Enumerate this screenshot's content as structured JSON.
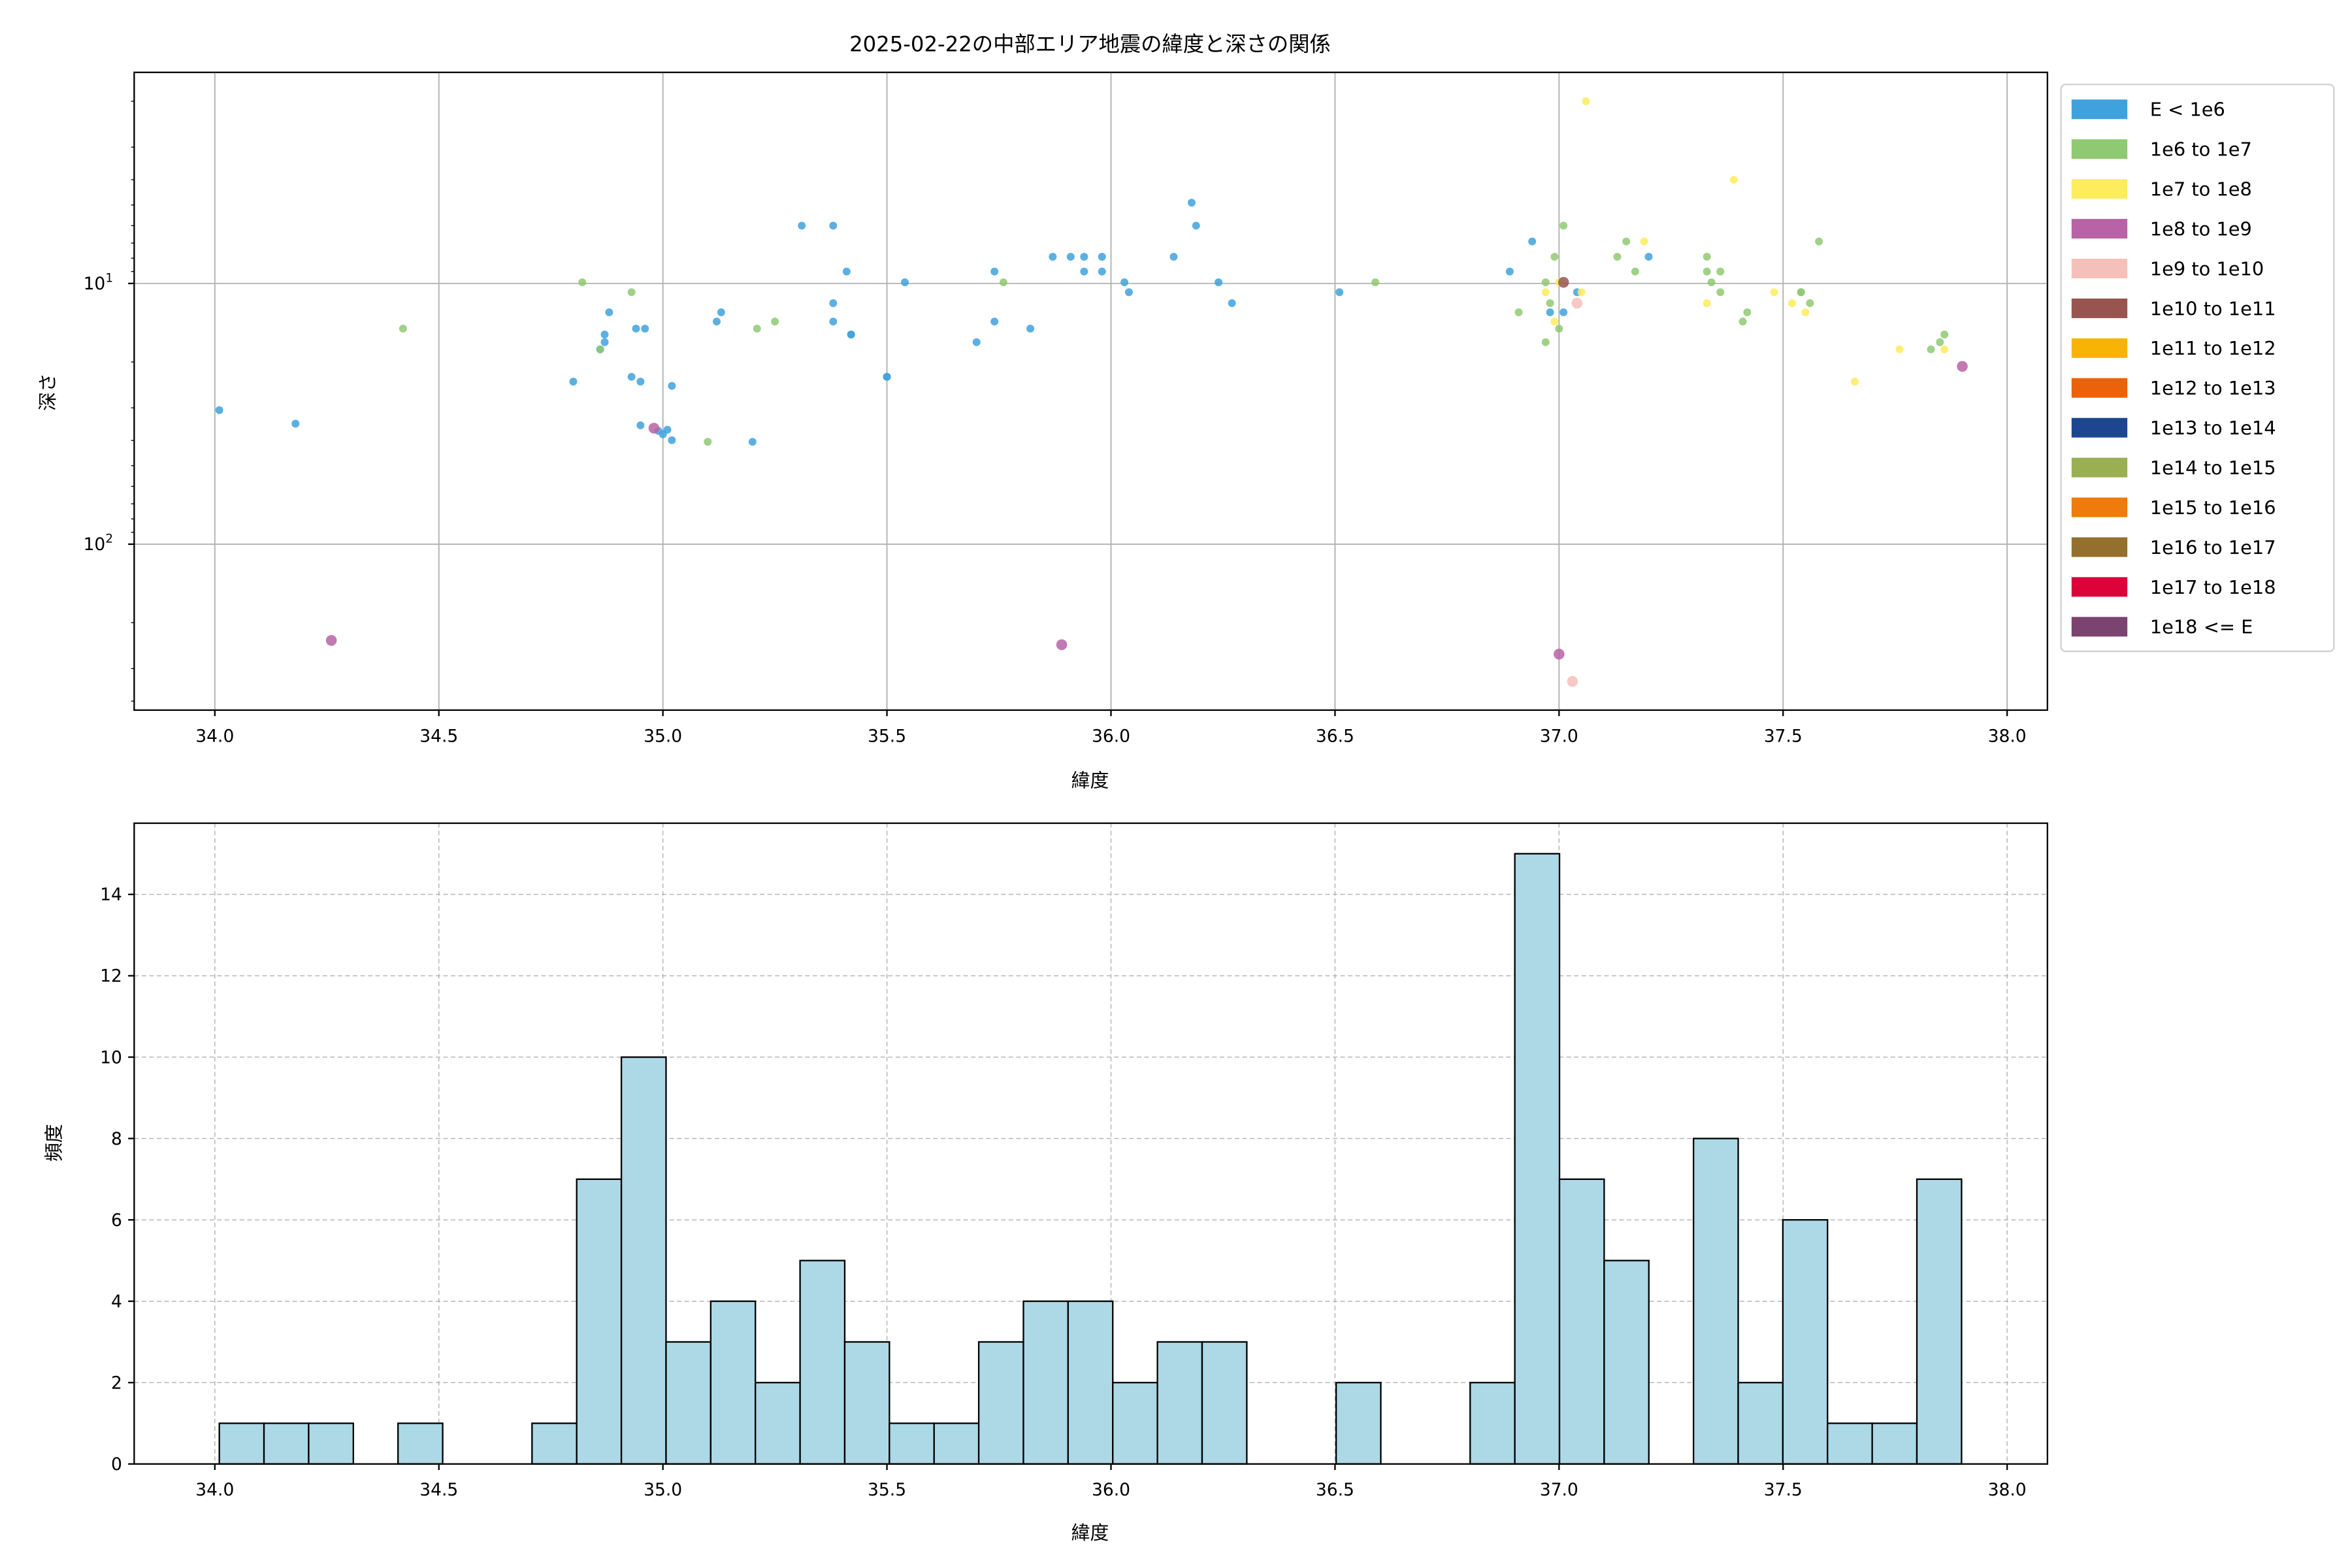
{
  "chart_data": [
    {
      "type": "scatter",
      "title": "2025-02-22の中部エリア地震の緯度と深さの関係",
      "xlabel": "緯度",
      "ylabel": "深さ",
      "xlim": [
        33.82,
        38.09
      ],
      "ylim": [
        433,
        1.55
      ],
      "yscale": "log",
      "y_inverted": true,
      "xticks": [
        "34.0",
        "34.5",
        "35.0",
        "35.5",
        "36.0",
        "36.5",
        "37.0",
        "37.5",
        "38.0"
      ],
      "xtick_values": [
        34.0,
        34.5,
        35.0,
        35.5,
        36.0,
        36.5,
        37.0,
        37.5,
        38.0
      ],
      "yticks": [
        {
          "base": "10",
          "exp": "1",
          "value": 10
        },
        {
          "base": "10",
          "exp": "2",
          "value": 100
        }
      ],
      "grid": true,
      "legend_position": "outside-right",
      "legend": [
        {
          "label": "E < 1e6",
          "color": "#3fa2dc"
        },
        {
          "label": "1e6 to 1e7",
          "color": "#8fc972"
        },
        {
          "label": "1e7 to 1e8",
          "color": "#fdec5c"
        },
        {
          "label": "1e8 to 1e9",
          "color": "#b763a6"
        },
        {
          "label": "1e9 to 1e10",
          "color": "#f6c0ba"
        },
        {
          "label": "1e10 to 1e11",
          "color": "#985550"
        },
        {
          "label": "1e11 to 1e12",
          "color": "#f7b404"
        },
        {
          "label": "1e12 to 1e13",
          "color": "#ec620a"
        },
        {
          "label": "1e13 to 1e14",
          "color": "#1c4690"
        },
        {
          "label": "1e14 to 1e15",
          "color": "#9aae52"
        },
        {
          "label": "1e15 to 1e16",
          "color": "#ee7b0b"
        },
        {
          "label": "1e16 to 1e17",
          "color": "#946f2e"
        },
        {
          "label": "1e17 to 1e18",
          "color": "#dc033a"
        },
        {
          "label": "1e18 <= E",
          "color": "#7b436f"
        }
      ],
      "series": [
        {
          "name": "E < 1e6",
          "points": [
            [
              34.01,
              30.6
            ],
            [
              34.18,
              34.5
            ],
            [
              34.8,
              23.8
            ],
            [
              34.86,
              17.9
            ],
            [
              34.87,
              16.8
            ],
            [
              34.87,
              15.7
            ],
            [
              34.88,
              12.9
            ],
            [
              34.93,
              22.8
            ],
            [
              34.94,
              14.9
            ],
            [
              34.95,
              23.8
            ],
            [
              34.95,
              35.0
            ],
            [
              34.96,
              14.9
            ],
            [
              34.99,
              36.8
            ],
            [
              35.0,
              37.9
            ],
            [
              35.01,
              36.4
            ],
            [
              35.02,
              39.9
            ],
            [
              35.02,
              24.7
            ],
            [
              35.12,
              14.0
            ],
            [
              35.13,
              12.9
            ],
            [
              35.2,
              40.5
            ],
            [
              35.31,
              6.0
            ],
            [
              35.38,
              14.0
            ],
            [
              35.38,
              11.9
            ],
            [
              35.38,
              6.0
            ],
            [
              35.41,
              9.0
            ],
            [
              35.42,
              15.7
            ],
            [
              35.42,
              15.7
            ],
            [
              35.5,
              22.8
            ],
            [
              35.5,
              22.8
            ],
            [
              35.54,
              9.9
            ],
            [
              35.7,
              16.8
            ],
            [
              35.74,
              14.0
            ],
            [
              35.74,
              9.0
            ],
            [
              35.82,
              14.9
            ],
            [
              35.87,
              7.9
            ],
            [
              35.91,
              7.9
            ],
            [
              35.94,
              7.9
            ],
            [
              35.94,
              9.0
            ],
            [
              35.98,
              7.9
            ],
            [
              35.98,
              9.0
            ],
            [
              36.03,
              9.9
            ],
            [
              36.04,
              10.8
            ],
            [
              36.14,
              7.9
            ],
            [
              36.18,
              4.9
            ],
            [
              36.19,
              6.0
            ],
            [
              36.24,
              9.9
            ],
            [
              36.27,
              11.9
            ],
            [
              36.51,
              10.8
            ],
            [
              36.89,
              9.0
            ],
            [
              36.94,
              6.9
            ],
            [
              36.98,
              12.9
            ],
            [
              37.01,
              12.9
            ],
            [
              37.04,
              10.8
            ],
            [
              37.2,
              7.9
            ]
          ]
        },
        {
          "name": "1e6 to 1e7",
          "points": [
            [
              34.42,
              14.9
            ],
            [
              34.82,
              9.9
            ],
            [
              34.86,
              17.9
            ],
            [
              34.93,
              10.8
            ],
            [
              35.1,
              40.5
            ],
            [
              35.21,
              14.9
            ],
            [
              35.25,
              14.0
            ],
            [
              35.76,
              9.9
            ],
            [
              36.59,
              9.9
            ],
            [
              36.91,
              12.9
            ],
            [
              36.97,
              9.9
            ],
            [
              36.97,
              16.8
            ],
            [
              36.98,
              11.9
            ],
            [
              36.99,
              7.9
            ],
            [
              37.0,
              14.9
            ],
            [
              37.01,
              6.0
            ],
            [
              37.13,
              7.9
            ],
            [
              37.15,
              6.9
            ],
            [
              37.17,
              9.0
            ],
            [
              37.33,
              7.9
            ],
            [
              37.33,
              9.0
            ],
            [
              37.34,
              9.9
            ],
            [
              37.36,
              9.0
            ],
            [
              37.36,
              10.8
            ],
            [
              37.41,
              14.0
            ],
            [
              37.42,
              12.9
            ],
            [
              37.54,
              10.8
            ],
            [
              37.54,
              10.8
            ],
            [
              37.56,
              11.9
            ],
            [
              37.58,
              6.9
            ],
            [
              37.83,
              17.9
            ],
            [
              37.85,
              16.8
            ],
            [
              37.86,
              15.7
            ]
          ]
        },
        {
          "name": "1e7 to 1e8",
          "points": [
            [
              36.97,
              10.8
            ],
            [
              36.99,
              14.0
            ],
            [
              37.0,
              9.9
            ],
            [
              37.05,
              10.8
            ],
            [
              37.06,
              2.0
            ],
            [
              37.19,
              6.9
            ],
            [
              37.33,
              11.9
            ],
            [
              37.39,
              4.0
            ],
            [
              37.48,
              10.8
            ],
            [
              37.52,
              11.9
            ],
            [
              37.55,
              12.9
            ],
            [
              37.66,
              23.8
            ],
            [
              37.76,
              17.9
            ],
            [
              37.86,
              17.9
            ]
          ]
        },
        {
          "name": "1e8 to 1e9",
          "points": [
            [
              34.26,
              234
            ],
            [
              34.98,
              35.9
            ],
            [
              35.89,
              243
            ],
            [
              37.0,
              264
            ],
            [
              37.9,
              20.8
            ]
          ]
        },
        {
          "name": "1e9 to 1e10",
          "points": [
            [
              37.03,
              336
            ],
            [
              37.04,
              11.9
            ]
          ]
        },
        {
          "name": "1e10 to 1e11",
          "points": [
            [
              37.01,
              9.9
            ]
          ]
        }
      ]
    },
    {
      "type": "bar",
      "subtype": "histogram",
      "xlabel": "緯度",
      "ylabel": "頻度",
      "xlim": [
        33.82,
        38.09
      ],
      "ylim": [
        0,
        15.75
      ],
      "xticks": [
        "34.0",
        "34.5",
        "35.0",
        "35.5",
        "36.0",
        "36.5",
        "37.0",
        "37.5",
        "38.0"
      ],
      "xtick_values": [
        34.0,
        34.5,
        35.0,
        35.5,
        36.0,
        36.5,
        37.0,
        37.5,
        38.0
      ],
      "yticks": [
        "0",
        "2",
        "4",
        "6",
        "8",
        "10",
        "12",
        "14"
      ],
      "ytick_values": [
        0,
        2,
        4,
        6,
        8,
        10,
        12,
        14
      ],
      "bin_start": 34.01,
      "bin_width": 0.0997,
      "counts": [
        1,
        1,
        1,
        0,
        1,
        0,
        0,
        1,
        7,
        10,
        3,
        4,
        2,
        5,
        3,
        1,
        1,
        3,
        4,
        4,
        2,
        3,
        3,
        0,
        0,
        2,
        0,
        0,
        2,
        15,
        7,
        5,
        0,
        8,
        2,
        6,
        1,
        1,
        7
      ],
      "color": "#add8e6",
      "grid": true
    }
  ]
}
